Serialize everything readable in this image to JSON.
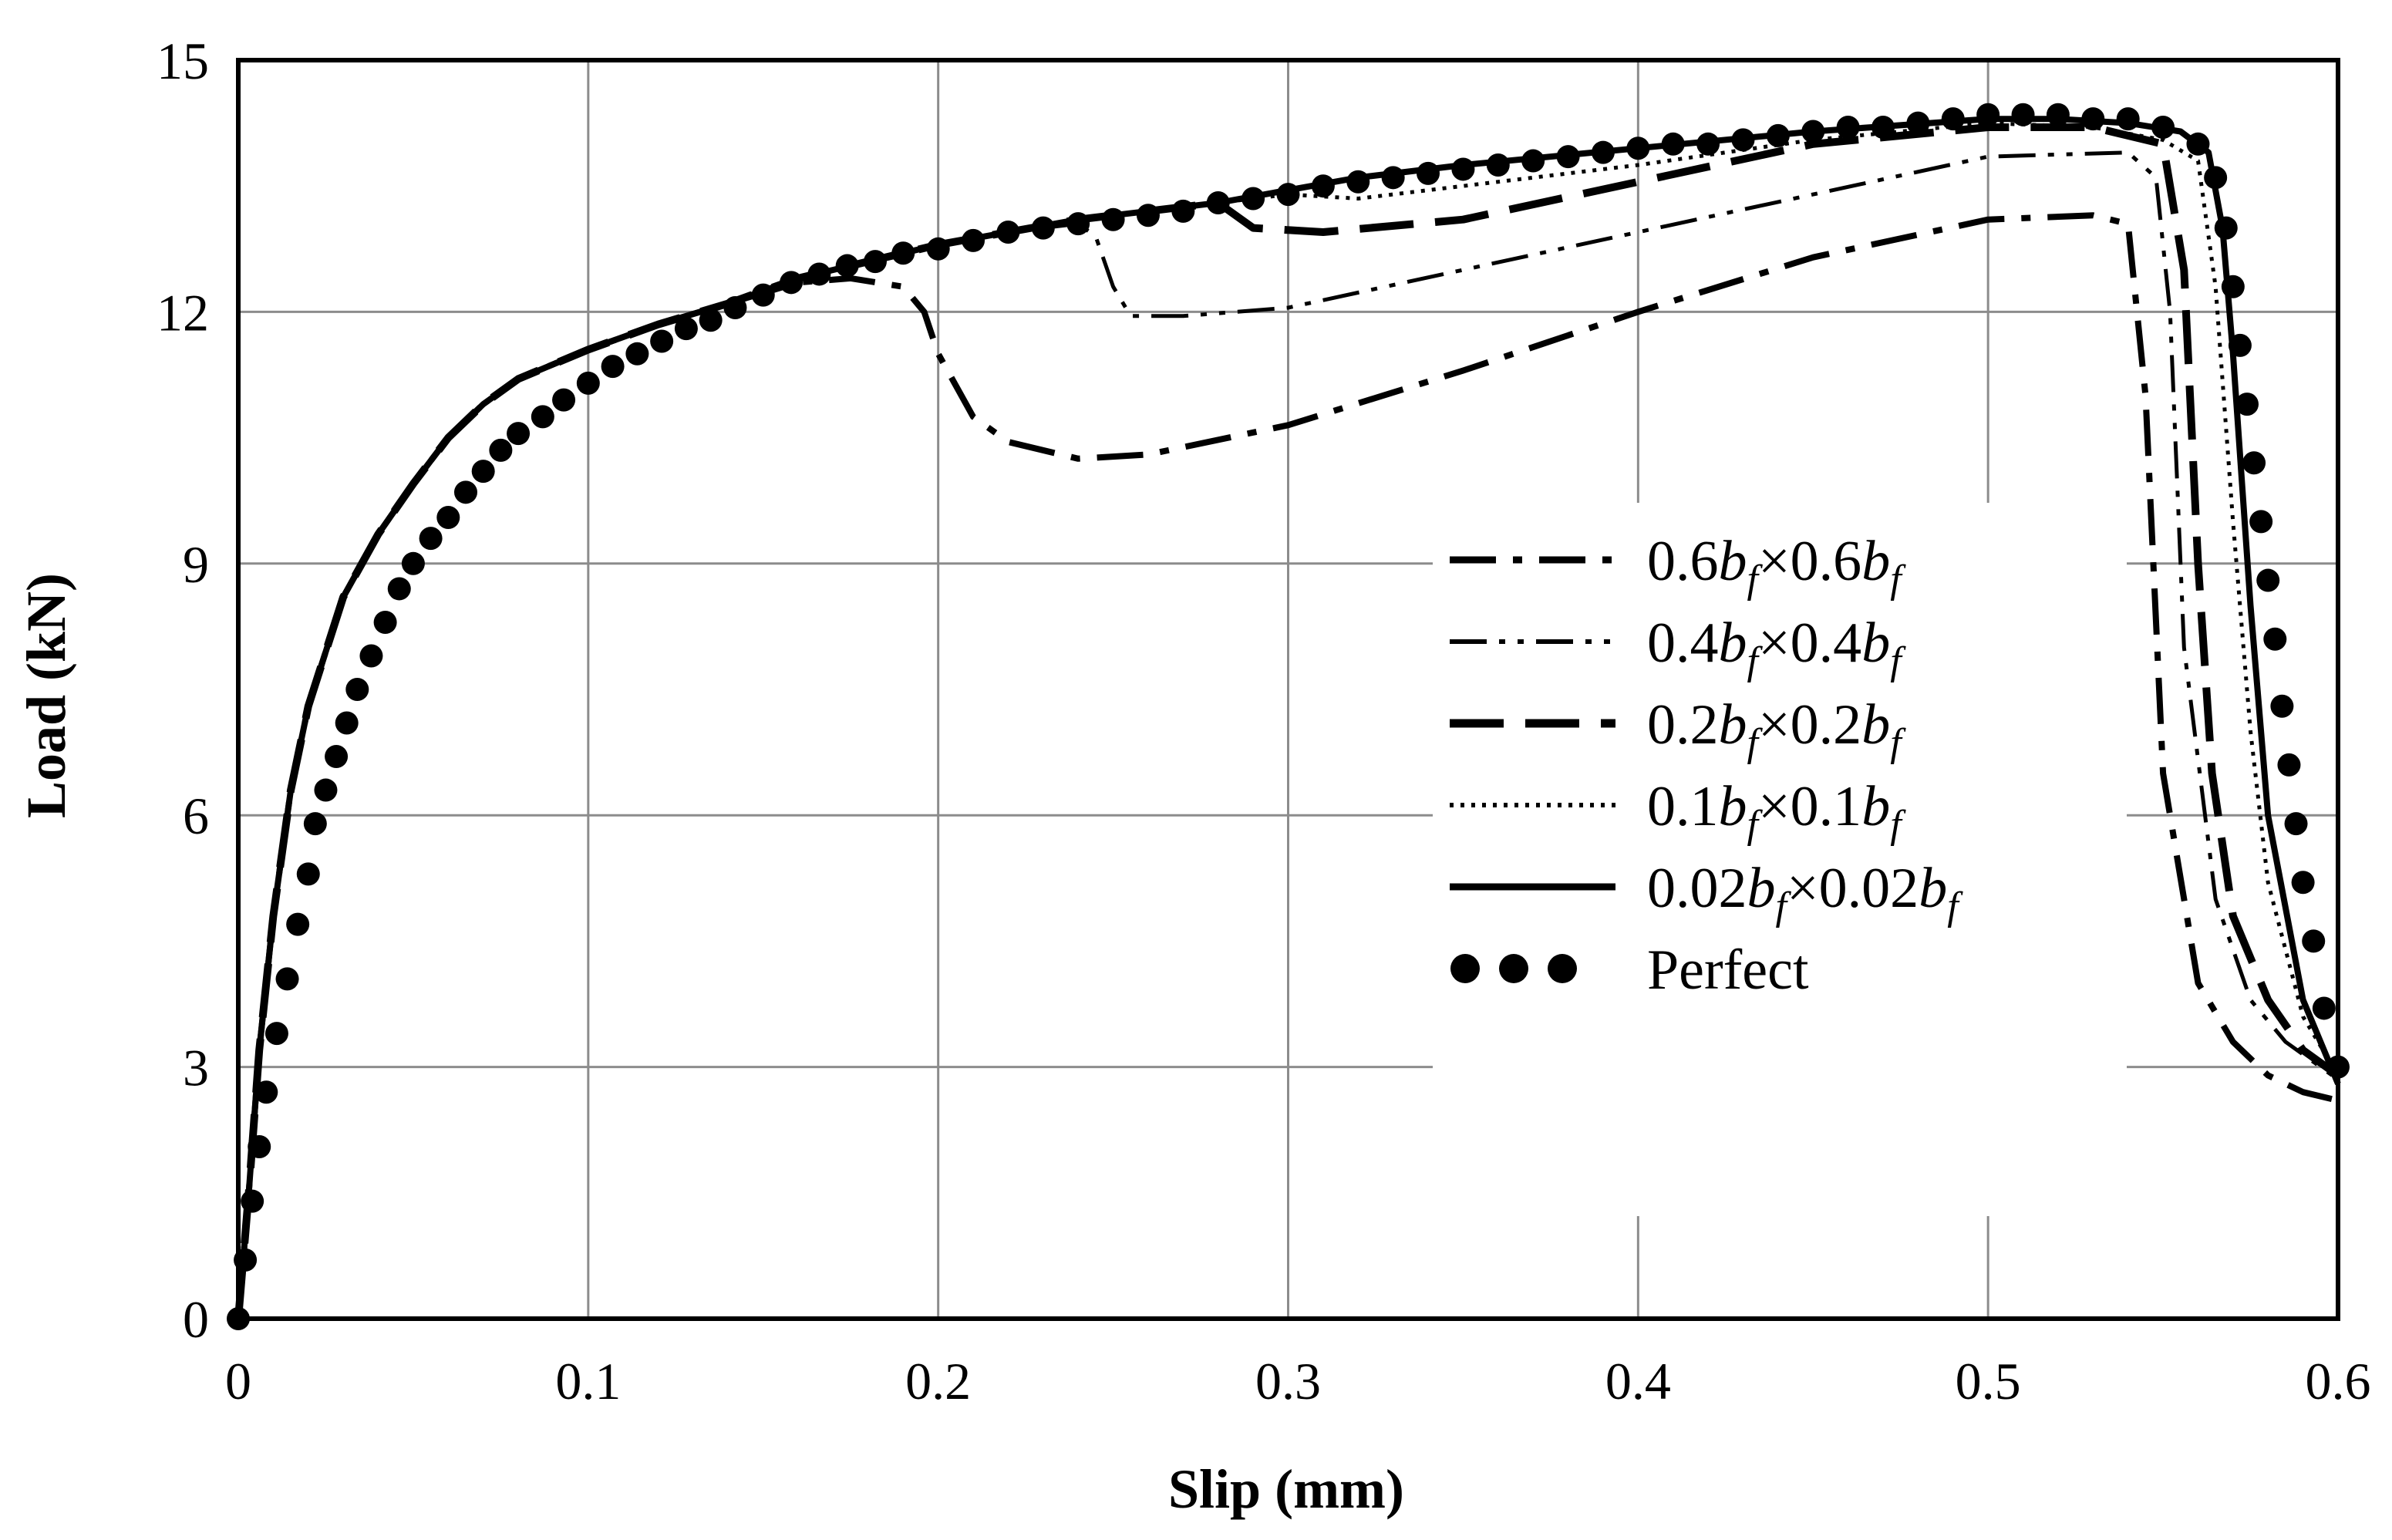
{
  "chart_data": {
    "type": "line",
    "title": "",
    "xlabel": "Slip (mm)",
    "ylabel": "Load (kN)",
    "xlim": [
      0,
      0.6
    ],
    "ylim": [
      0,
      15
    ],
    "xticks": [
      0,
      0.1,
      0.2,
      0.3,
      0.4,
      0.5,
      0.6
    ],
    "yticks": [
      0,
      3,
      6,
      9,
      12,
      15
    ],
    "xtick_labels": [
      "0",
      "0.1",
      "0.2",
      "0.3",
      "0.4",
      "0.5",
      "0.6"
    ],
    "ytick_labels": [
      "0",
      "3",
      "6",
      "9",
      "12",
      "15"
    ],
    "grid": true,
    "legend_position": "right-middle",
    "series": [
      {
        "name": "0.6bf×0.6bf",
        "legend": {
          "c1": "0.6",
          "v1": "b",
          "s1": "f",
          "mid": "×0.6",
          "v2": "b",
          "s2": "f"
        },
        "style": "dash-dot-thick",
        "x": [
          0,
          0.003,
          0.006,
          0.01,
          0.015,
          0.02,
          0.03,
          0.04,
          0.05,
          0.06,
          0.07,
          0.08,
          0.1,
          0.12,
          0.14,
          0.16,
          0.175,
          0.19,
          0.196,
          0.2,
          0.21,
          0.22,
          0.24,
          0.26,
          0.3,
          0.35,
          0.4,
          0.45,
          0.5,
          0.53,
          0.54,
          0.545,
          0.55,
          0.56,
          0.57,
          0.58,
          0.59,
          0.6
        ],
        "y": [
          0,
          1.5,
          3.2,
          4.8,
          6.3,
          7.3,
          8.6,
          9.35,
          9.95,
          10.5,
          10.9,
          11.2,
          11.55,
          11.85,
          12.1,
          12.35,
          12.4,
          12.3,
          12.0,
          11.5,
          10.75,
          10.45,
          10.25,
          10.3,
          10.65,
          11.3,
          12.0,
          12.65,
          13.1,
          13.15,
          13.05,
          11.0,
          6.5,
          4.0,
          3.3,
          2.9,
          2.7,
          2.6
        ]
      },
      {
        "name": "0.4bf×0.4bf",
        "legend": {
          "c1": "0.4",
          "v1": "b",
          "s1": "f",
          "mid": "×0.4",
          "v2": "b",
          "s2": "f"
        },
        "style": "dash-dot-dot",
        "x": [
          0,
          0.003,
          0.006,
          0.01,
          0.015,
          0.02,
          0.03,
          0.04,
          0.05,
          0.06,
          0.07,
          0.08,
          0.1,
          0.12,
          0.14,
          0.16,
          0.18,
          0.2,
          0.22,
          0.24,
          0.245,
          0.25,
          0.255,
          0.27,
          0.3,
          0.35,
          0.4,
          0.45,
          0.5,
          0.54,
          0.548,
          0.552,
          0.556,
          0.565,
          0.575,
          0.585,
          0.595,
          0.6
        ],
        "y": [
          0,
          1.5,
          3.2,
          4.8,
          6.3,
          7.3,
          8.6,
          9.35,
          9.95,
          10.5,
          10.9,
          11.2,
          11.55,
          11.85,
          12.1,
          12.4,
          12.6,
          12.8,
          12.95,
          13.05,
          12.9,
          12.3,
          11.95,
          11.95,
          12.05,
          12.5,
          12.95,
          13.4,
          13.85,
          13.9,
          13.6,
          12.0,
          8.0,
          5.0,
          3.8,
          3.3,
          3.0,
          2.85
        ]
      },
      {
        "name": "0.2bf×0.2bf",
        "legend": {
          "c1": "0.2",
          "v1": "b",
          "s1": "f",
          "mid": "×0.2",
          "v2": "b",
          "s2": "f"
        },
        "style": "long-dash",
        "x": [
          0,
          0.003,
          0.006,
          0.01,
          0.015,
          0.02,
          0.03,
          0.04,
          0.05,
          0.06,
          0.07,
          0.08,
          0.1,
          0.12,
          0.14,
          0.16,
          0.18,
          0.2,
          0.22,
          0.24,
          0.26,
          0.28,
          0.29,
          0.31,
          0.35,
          0.4,
          0.45,
          0.5,
          0.53,
          0.55,
          0.556,
          0.56,
          0.564,
          0.57,
          0.58,
          0.59,
          0.6
        ],
        "y": [
          0,
          1.5,
          3.2,
          4.8,
          6.3,
          7.3,
          8.6,
          9.35,
          9.95,
          10.5,
          10.9,
          11.2,
          11.55,
          11.85,
          12.1,
          12.4,
          12.6,
          12.8,
          12.95,
          13.1,
          13.2,
          13.3,
          13.0,
          12.95,
          13.1,
          13.55,
          14.0,
          14.2,
          14.2,
          14.0,
          12.5,
          9.0,
          6.5,
          4.8,
          3.8,
          3.2,
          2.9
        ]
      },
      {
        "name": "0.1bf×0.1bf",
        "legend": {
          "c1": "0.1",
          "v1": "b",
          "s1": "f",
          "mid": "×0.1",
          "v2": "b",
          "s2": "f"
        },
        "style": "dotted",
        "x": [
          0,
          0.003,
          0.006,
          0.01,
          0.015,
          0.02,
          0.03,
          0.04,
          0.05,
          0.06,
          0.07,
          0.08,
          0.1,
          0.12,
          0.14,
          0.16,
          0.18,
          0.2,
          0.22,
          0.24,
          0.26,
          0.28,
          0.3,
          0.32,
          0.35,
          0.4,
          0.45,
          0.5,
          0.53,
          0.55,
          0.56,
          0.565,
          0.57,
          0.575,
          0.58,
          0.59,
          0.6
        ],
        "y": [
          0,
          1.5,
          3.2,
          4.8,
          6.3,
          7.3,
          8.6,
          9.35,
          9.95,
          10.5,
          10.9,
          11.2,
          11.55,
          11.85,
          12.1,
          12.4,
          12.6,
          12.8,
          12.95,
          13.1,
          13.2,
          13.3,
          13.4,
          13.35,
          13.5,
          13.75,
          14.05,
          14.25,
          14.2,
          14.05,
          13.8,
          12.3,
          9.5,
          7.0,
          5.2,
          3.6,
          2.9
        ]
      },
      {
        "name": "0.02bf×0.02bf",
        "legend": {
          "c1": "0.02",
          "v1": "b",
          "s1": "f",
          "mid": "×0.02",
          "v2": "b",
          "s2": "f"
        },
        "style": "solid",
        "x": [
          0,
          0.003,
          0.006,
          0.01,
          0.015,
          0.02,
          0.03,
          0.04,
          0.05,
          0.06,
          0.07,
          0.08,
          0.1,
          0.12,
          0.14,
          0.16,
          0.18,
          0.2,
          0.22,
          0.24,
          0.26,
          0.28,
          0.3,
          0.32,
          0.35,
          0.4,
          0.45,
          0.5,
          0.52,
          0.54,
          0.555,
          0.563,
          0.567,
          0.57,
          0.575,
          0.58,
          0.59,
          0.6
        ],
        "y": [
          0,
          1.5,
          3.2,
          4.8,
          6.3,
          7.3,
          8.6,
          9.35,
          9.95,
          10.5,
          10.9,
          11.2,
          11.55,
          11.85,
          12.1,
          12.4,
          12.6,
          12.8,
          12.95,
          13.1,
          13.2,
          13.3,
          13.45,
          13.6,
          13.75,
          13.95,
          14.15,
          14.3,
          14.3,
          14.25,
          14.15,
          13.9,
          13.0,
          11.5,
          8.5,
          6.0,
          3.8,
          2.8
        ]
      },
      {
        "name": "Perfect",
        "legend": {
          "c1": "Perfect",
          "v1": "",
          "s1": "",
          "mid": "",
          "v2": "",
          "s2": ""
        },
        "style": "markers",
        "x": [
          0,
          0.002,
          0.004,
          0.006,
          0.008,
          0.011,
          0.014,
          0.017,
          0.02,
          0.022,
          0.025,
          0.028,
          0.031,
          0.034,
          0.038,
          0.042,
          0.046,
          0.05,
          0.055,
          0.06,
          0.065,
          0.07,
          0.075,
          0.08,
          0.087,
          0.093,
          0.1,
          0.107,
          0.114,
          0.121,
          0.128,
          0.135,
          0.142,
          0.15,
          0.158,
          0.166,
          0.174,
          0.182,
          0.19,
          0.2,
          0.21,
          0.22,
          0.23,
          0.24,
          0.25,
          0.26,
          0.27,
          0.28,
          0.29,
          0.3,
          0.31,
          0.32,
          0.33,
          0.34,
          0.35,
          0.36,
          0.37,
          0.38,
          0.39,
          0.4,
          0.41,
          0.42,
          0.43,
          0.44,
          0.45,
          0.46,
          0.47,
          0.48,
          0.49,
          0.5,
          0.51,
          0.52,
          0.53,
          0.54,
          0.55,
          0.56,
          0.565,
          0.568,
          0.57,
          0.572,
          0.574,
          0.576,
          0.578,
          0.58,
          0.582,
          0.584,
          0.586,
          0.588,
          0.59,
          0.593,
          0.596,
          0.6
        ],
        "y": [
          0,
          0.7,
          1.4,
          2.05,
          2.7,
          3.4,
          4.05,
          4.7,
          5.3,
          5.9,
          6.3,
          6.7,
          7.1,
          7.5,
          7.9,
          8.3,
          8.7,
          9.0,
          9.3,
          9.55,
          9.85,
          10.1,
          10.35,
          10.55,
          10.75,
          10.95,
          11.15,
          11.35,
          11.5,
          11.65,
          11.8,
          11.9,
          12.05,
          12.2,
          12.35,
          12.45,
          12.55,
          12.6,
          12.7,
          12.75,
          12.85,
          12.95,
          13.0,
          13.05,
          13.1,
          13.15,
          13.2,
          13.3,
          13.35,
          13.4,
          13.5,
          13.55,
          13.6,
          13.65,
          13.7,
          13.75,
          13.8,
          13.85,
          13.9,
          13.95,
          14.0,
          14.0,
          14.05,
          14.1,
          14.15,
          14.2,
          14.2,
          14.25,
          14.3,
          14.35,
          14.35,
          14.35,
          14.3,
          14.3,
          14.2,
          14.0,
          13.6,
          13.0,
          12.3,
          11.6,
          10.9,
          10.2,
          9.5,
          8.8,
          8.1,
          7.3,
          6.6,
          5.9,
          5.2,
          4.5,
          3.7,
          3.0
        ]
      }
    ]
  }
}
